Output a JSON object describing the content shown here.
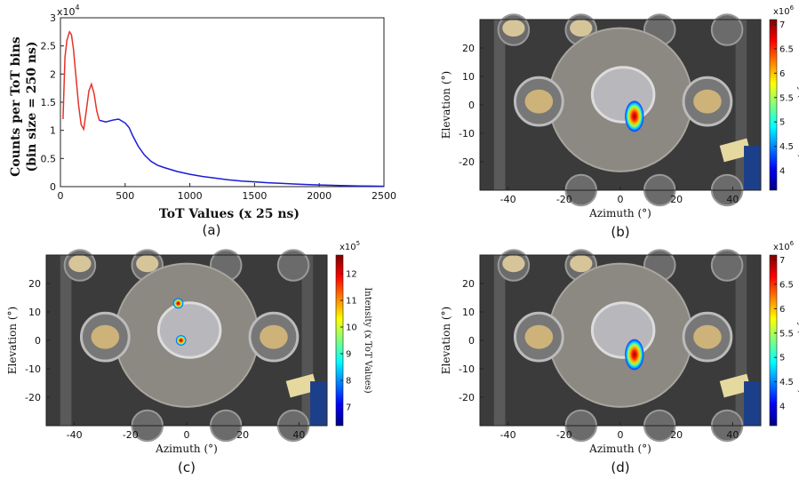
{
  "chart_data": [
    {
      "panel": "(a)",
      "type": "line",
      "xlabel": "ToT Values (x 25 ns)",
      "ylabel_line1": "Counts per ToT bins",
      "ylabel_line2": "(bin size = 250 ns)",
      "y_multiplier": "x10",
      "y_multiplier_exp": "4",
      "xlim": [
        0,
        2500
      ],
      "ylim": [
        0,
        3
      ],
      "xticks": [
        "0",
        "500",
        "1000",
        "1500",
        "2000",
        "2500"
      ],
      "yticks": [
        "0",
        "0.5",
        "1",
        "1.5",
        "2",
        "2.5",
        "3"
      ],
      "series": [
        {
          "color": "#e8312b",
          "x": [
            20,
            35,
            50,
            70,
            85,
            100,
            120,
            140,
            160,
            180,
            200,
            220,
            240,
            260,
            280,
            300
          ],
          "y": [
            1.2,
            2.3,
            2.6,
            2.75,
            2.7,
            2.45,
            1.95,
            1.45,
            1.1,
            1.02,
            1.35,
            1.7,
            1.82,
            1.65,
            1.35,
            1.18
          ]
        },
        {
          "color": "#1b1bd6",
          "x": [
            300,
            350,
            400,
            450,
            500,
            530,
            560,
            600,
            650,
            700,
            750,
            800,
            900,
            1000,
            1100,
            1200,
            1300,
            1400,
            1500,
            1600,
            1700,
            1800,
            1900,
            2000,
            2100,
            2200,
            2300,
            2400,
            2500
          ],
          "y": [
            1.18,
            1.15,
            1.18,
            1.2,
            1.13,
            1.05,
            0.9,
            0.72,
            0.56,
            0.45,
            0.38,
            0.34,
            0.27,
            0.22,
            0.18,
            0.15,
            0.12,
            0.1,
            0.085,
            0.07,
            0.058,
            0.047,
            0.038,
            0.03,
            0.024,
            0.018,
            0.013,
            0.009,
            0.006
          ]
        }
      ]
    },
    {
      "panel": "(b)",
      "type": "heatmap",
      "xlabel": "Azimuth (°)",
      "ylabel": "Elevation (°)",
      "xticks": [
        "-40",
        "-20",
        "0",
        "20",
        "40"
      ],
      "yticks": [
        "-20",
        "-10",
        "0",
        "10",
        "20"
      ],
      "xlim": [
        -50,
        50
      ],
      "ylim": [
        30,
        -30
      ],
      "hotspots": [
        {
          "az": 5,
          "el": -4,
          "size": 1.0
        }
      ],
      "colorbar": {
        "label": "Intensity (x ToT Values)",
        "multiplier": "x10",
        "multiplier_exp": "6",
        "ticks": [
          "4",
          "4.5",
          "5",
          "5.5",
          "6",
          "6.5",
          "7"
        ],
        "range": [
          3.6,
          7.1
        ]
      }
    },
    {
      "panel": "(c)",
      "type": "heatmap",
      "xlabel": "Azimuth (°)",
      "ylabel": "Elevation (°)",
      "xticks": [
        "-40",
        "-20",
        "0",
        "20",
        "40"
      ],
      "yticks": [
        "-20",
        "-10",
        "0",
        "10",
        "20"
      ],
      "xlim": [
        -50,
        50
      ],
      "ylim": [
        30,
        -30
      ],
      "hotspots": [
        {
          "az": -2,
          "el": 0,
          "size": 0.45
        },
        {
          "az": -3,
          "el": 13,
          "size": 0.45
        }
      ],
      "colorbar": {
        "label": "Intensity (x ToT Values)",
        "multiplier": "x10",
        "multiplier_exp": "5",
        "ticks": [
          "7",
          "8",
          "9",
          "10",
          "11",
          "12"
        ],
        "range": [
          6.3,
          12.7
        ]
      }
    },
    {
      "panel": "(d)",
      "type": "heatmap",
      "xlabel": "Azimuth (°)",
      "ylabel": "Elevation (°)",
      "xticks": [
        "-40",
        "-20",
        "0",
        "20",
        "40"
      ],
      "yticks": [
        "-20",
        "-10",
        "0",
        "10",
        "20"
      ],
      "xlim": [
        -50,
        50
      ],
      "ylim": [
        30,
        -30
      ],
      "hotspots": [
        {
          "az": 5,
          "el": -5,
          "size": 1.0
        }
      ],
      "colorbar": {
        "label": "Intensity (x ToT Values)",
        "multiplier": "x10",
        "multiplier_exp": "6",
        "ticks": [
          "4",
          "4.5",
          "5",
          "5.5",
          "6",
          "6.5",
          "7"
        ],
        "range": [
          3.6,
          7.1
        ]
      }
    }
  ]
}
